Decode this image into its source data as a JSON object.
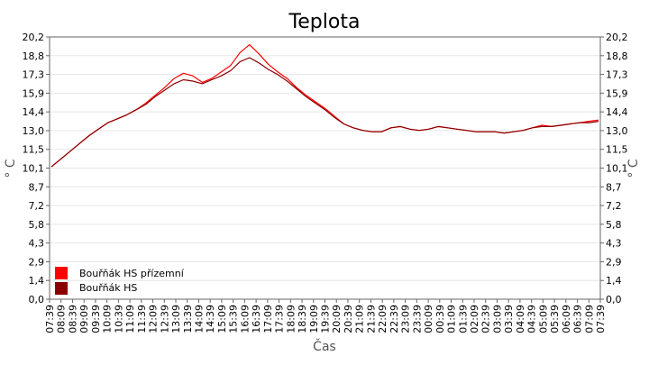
{
  "chart_data": {
    "type": "line",
    "title": "Teplota",
    "xlabel": "Čas",
    "ylabel": "° C",
    "ylabel_right": "° C",
    "ylim": [
      0,
      20.2
    ],
    "yticks": [
      "0,0",
      "1,4",
      "2,9",
      "4,3",
      "5,8",
      "7,2",
      "8,7",
      "10,1",
      "11,5",
      "13,0",
      "14,4",
      "15,9",
      "17,3",
      "18,8",
      "20,2"
    ],
    "xticks": [
      "07:39",
      "08:09",
      "08:39",
      "09:09",
      "09:39",
      "10:09",
      "10:39",
      "11:09",
      "11:39",
      "12:09",
      "12:39",
      "13:09",
      "13:39",
      "14:09",
      "14:39",
      "15:09",
      "15:39",
      "16:09",
      "16:39",
      "17:09",
      "17:39",
      "18:09",
      "18:39",
      "19:09",
      "19:39",
      "20:09",
      "20:39",
      "21:09",
      "21:39",
      "22:09",
      "22:39",
      "23:09",
      "23:39",
      "00:09",
      "00:39",
      "01:09",
      "01:39",
      "02:09",
      "02:39",
      "03:09",
      "03:39",
      "04:09",
      "04:39",
      "05:09",
      "05:39",
      "06:09",
      "06:39",
      "07:09",
      "07:39"
    ],
    "grid": true,
    "legend_position": "bottom-left",
    "series": [
      {
        "name": "Bouřňák HS přízemní",
        "color": "#ff0000",
        "values": [
          10.2,
          10.8,
          11.4,
          12.0,
          12.6,
          13.1,
          13.6,
          13.9,
          14.2,
          14.6,
          15.1,
          15.7,
          16.3,
          17.0,
          17.4,
          17.2,
          16.7,
          17.0,
          17.5,
          18.0,
          19.0,
          19.6,
          18.9,
          18.1,
          17.5,
          17.0,
          16.3,
          15.7,
          15.2,
          14.7,
          14.1,
          13.5,
          13.2,
          13.0,
          12.9,
          12.9,
          13.2,
          13.3,
          13.1,
          13.0,
          13.1,
          13.3,
          13.2,
          13.1,
          13.0,
          12.9,
          12.9,
          12.9,
          12.8,
          12.9,
          13.0,
          13.2,
          13.4,
          13.3,
          13.4,
          13.5,
          13.6,
          13.7,
          13.8
        ]
      },
      {
        "name": "Bouřňák HS",
        "color": "#8b0000",
        "values": [
          10.2,
          10.8,
          11.4,
          12.0,
          12.6,
          13.1,
          13.6,
          13.9,
          14.2,
          14.6,
          15.0,
          15.6,
          16.1,
          16.6,
          16.9,
          16.8,
          16.6,
          16.9,
          17.2,
          17.6,
          18.3,
          18.6,
          18.2,
          17.7,
          17.3,
          16.8,
          16.2,
          15.6,
          15.1,
          14.6,
          14.0,
          13.5,
          13.2,
          13.0,
          12.9,
          12.9,
          13.2,
          13.3,
          13.1,
          13.0,
          13.1,
          13.3,
          13.2,
          13.1,
          13.0,
          12.9,
          12.9,
          12.9,
          12.8,
          12.9,
          13.0,
          13.2,
          13.3,
          13.3,
          13.4,
          13.5,
          13.6,
          13.6,
          13.7
        ]
      }
    ]
  }
}
